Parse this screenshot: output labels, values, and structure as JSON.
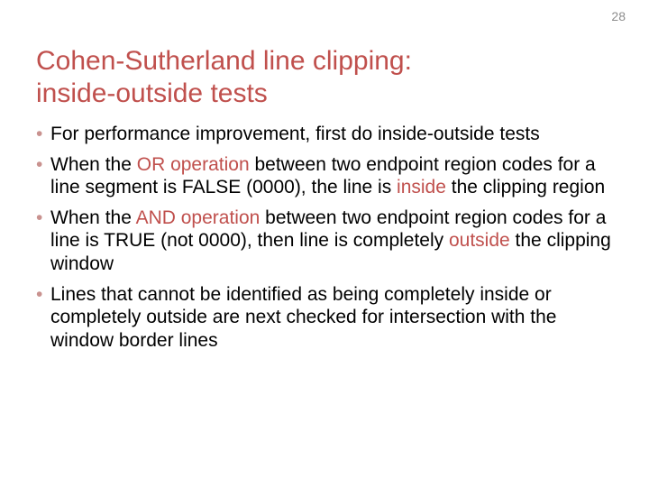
{
  "page_number": "28",
  "title_line1": "Cohen-Sutherland line clipping:",
  "title_line2": "inside-outside tests",
  "colors": {
    "title": "#c0504d",
    "highlight": "#c0504d",
    "bullet_marker": "#c9928f",
    "body_text": "#000000",
    "page_number": "#8d8d8d",
    "background": "#ffffff"
  },
  "typography": {
    "title_fontsize": 30,
    "body_fontsize": 21,
    "page_number_fontsize": 14,
    "font_family": "Arial"
  },
  "bullets": [
    {
      "pre1": "For performance improvement, first do inside-outside tests"
    },
    {
      "pre1": "When the ",
      "hl1": "OR operation",
      "mid1": " between two endpoint region codes for a line segment is FALSE (0000), the line is ",
      "hl2": "inside",
      "post1": " the clipping region"
    },
    {
      "pre1": "When the ",
      "hl1": "AND operation",
      "mid1": " between two endpoint region codes for a line is TRUE (not 0000), then line is completely ",
      "hl2": "outside",
      "post1": " the clipping window"
    },
    {
      "pre1": "Lines that cannot be identified as being completely inside or completely outside are next checked for intersection with the window border lines"
    }
  ]
}
